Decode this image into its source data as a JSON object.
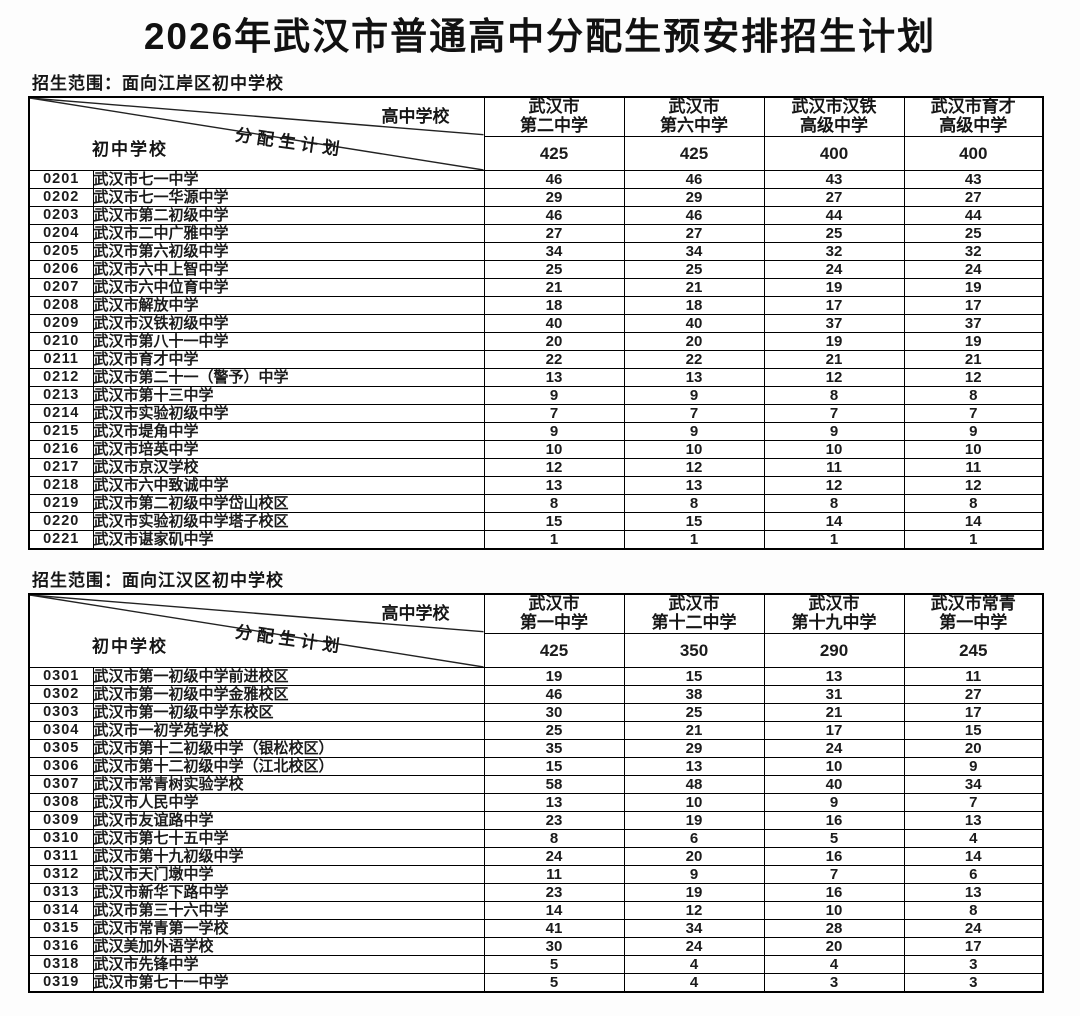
{
  "page": {
    "title": "2026年武汉市普通高中分配生预安排招生计划"
  },
  "tables": [
    {
      "scope_label": "招生范围：面向江岸区初中学校",
      "corner": {
        "high_school": "高中学校",
        "plan": "分配生计划",
        "middle_school": "初中学校"
      },
      "high_schools": [
        {
          "line1": "武汉市",
          "line2": "第二中学",
          "total": "425"
        },
        {
          "line1": "武汉市",
          "line2": "第六中学",
          "total": "425"
        },
        {
          "line1": "武汉市汉铁",
          "line2": "高级中学",
          "total": "400"
        },
        {
          "line1": "武汉市育才",
          "line2": "高级中学",
          "total": "400"
        }
      ],
      "rows": [
        {
          "code": "0201",
          "school": "武汉市七一中学",
          "values": [
            "46",
            "46",
            "43",
            "43"
          ]
        },
        {
          "code": "0202",
          "school": "武汉市七一华源中学",
          "values": [
            "29",
            "29",
            "27",
            "27"
          ]
        },
        {
          "code": "0203",
          "school": "武汉市第二初级中学",
          "values": [
            "46",
            "46",
            "44",
            "44"
          ]
        },
        {
          "code": "0204",
          "school": "武汉市二中广雅中学",
          "values": [
            "27",
            "27",
            "25",
            "25"
          ]
        },
        {
          "code": "0205",
          "school": "武汉市第六初级中学",
          "values": [
            "34",
            "34",
            "32",
            "32"
          ]
        },
        {
          "code": "0206",
          "school": "武汉市六中上智中学",
          "values": [
            "25",
            "25",
            "24",
            "24"
          ]
        },
        {
          "code": "0207",
          "school": "武汉市六中位育中学",
          "values": [
            "21",
            "21",
            "19",
            "19"
          ]
        },
        {
          "code": "0208",
          "school": "武汉市解放中学",
          "values": [
            "18",
            "18",
            "17",
            "17"
          ]
        },
        {
          "code": "0209",
          "school": "武汉市汉铁初级中学",
          "values": [
            "40",
            "40",
            "37",
            "37"
          ]
        },
        {
          "code": "0210",
          "school": "武汉市第八十一中学",
          "values": [
            "20",
            "20",
            "19",
            "19"
          ]
        },
        {
          "code": "0211",
          "school": "武汉市育才中学",
          "values": [
            "22",
            "22",
            "21",
            "21"
          ]
        },
        {
          "code": "0212",
          "school": "武汉市第二十一（警予）中学",
          "values": [
            "13",
            "13",
            "12",
            "12"
          ]
        },
        {
          "code": "0213",
          "school": "武汉市第十三中学",
          "values": [
            "9",
            "9",
            "8",
            "8"
          ]
        },
        {
          "code": "0214",
          "school": "武汉市实验初级中学",
          "values": [
            "7",
            "7",
            "7",
            "7"
          ]
        },
        {
          "code": "0215",
          "school": "武汉市堤角中学",
          "values": [
            "9",
            "9",
            "9",
            "9"
          ]
        },
        {
          "code": "0216",
          "school": "武汉市培英中学",
          "values": [
            "10",
            "10",
            "10",
            "10"
          ]
        },
        {
          "code": "0217",
          "school": "武汉市京汉学校",
          "values": [
            "12",
            "12",
            "11",
            "11"
          ]
        },
        {
          "code": "0218",
          "school": "武汉市六中致诚中学",
          "values": [
            "13",
            "13",
            "12",
            "12"
          ]
        },
        {
          "code": "0219",
          "school": "武汉市第二初级中学岱山校区",
          "values": [
            "8",
            "8",
            "8",
            "8"
          ]
        },
        {
          "code": "0220",
          "school": "武汉市实验初级中学塔子校区",
          "values": [
            "15",
            "15",
            "14",
            "14"
          ]
        },
        {
          "code": "0221",
          "school": "武汉市谌家矶中学",
          "values": [
            "1",
            "1",
            "1",
            "1"
          ]
        }
      ]
    },
    {
      "scope_label": "招生范围：面向江汉区初中学校",
      "corner": {
        "high_school": "高中学校",
        "plan": "分配生计划",
        "middle_school": "初中学校"
      },
      "high_schools": [
        {
          "line1": "武汉市",
          "line2": "第一中学",
          "total": "425"
        },
        {
          "line1": "武汉市",
          "line2": "第十二中学",
          "total": "350"
        },
        {
          "line1": "武汉市",
          "line2": "第十九中学",
          "total": "290"
        },
        {
          "line1": "武汉市常青",
          "line2": "第一中学",
          "total": "245"
        }
      ],
      "rows": [
        {
          "code": "0301",
          "school": "武汉市第一初级中学前进校区",
          "values": [
            "19",
            "15",
            "13",
            "11"
          ]
        },
        {
          "code": "0302",
          "school": "武汉市第一初级中学金雅校区",
          "values": [
            "46",
            "38",
            "31",
            "27"
          ]
        },
        {
          "code": "0303",
          "school": "武汉市第一初级中学东校区",
          "values": [
            "30",
            "25",
            "21",
            "17"
          ]
        },
        {
          "code": "0304",
          "school": "武汉市一初学苑学校",
          "values": [
            "25",
            "21",
            "17",
            "15"
          ]
        },
        {
          "code": "0305",
          "school": "武汉市第十二初级中学（银松校区）",
          "values": [
            "35",
            "29",
            "24",
            "20"
          ]
        },
        {
          "code": "0306",
          "school": "武汉市第十二初级中学（江北校区）",
          "values": [
            "15",
            "13",
            "10",
            "9"
          ]
        },
        {
          "code": "0307",
          "school": "武汉市常青树实验学校",
          "values": [
            "58",
            "48",
            "40",
            "34"
          ]
        },
        {
          "code": "0308",
          "school": "武汉市人民中学",
          "values": [
            "13",
            "10",
            "9",
            "7"
          ]
        },
        {
          "code": "0309",
          "school": "武汉市友谊路中学",
          "values": [
            "23",
            "19",
            "16",
            "13"
          ]
        },
        {
          "code": "0310",
          "school": "武汉市第七十五中学",
          "values": [
            "8",
            "6",
            "5",
            "4"
          ]
        },
        {
          "code": "0311",
          "school": "武汉市第十九初级中学",
          "values": [
            "24",
            "20",
            "16",
            "14"
          ]
        },
        {
          "code": "0312",
          "school": "武汉市天门墩中学",
          "values": [
            "11",
            "9",
            "7",
            "6"
          ]
        },
        {
          "code": "0313",
          "school": "武汉市新华下路中学",
          "values": [
            "23",
            "19",
            "16",
            "13"
          ]
        },
        {
          "code": "0314",
          "school": "武汉市第三十六中学",
          "values": [
            "14",
            "12",
            "10",
            "8"
          ]
        },
        {
          "code": "0315",
          "school": "武汉市常青第一学校",
          "values": [
            "41",
            "34",
            "28",
            "24"
          ]
        },
        {
          "code": "0316",
          "school": "武汉美加外语学校",
          "values": [
            "30",
            "24",
            "20",
            "17"
          ]
        },
        {
          "code": "0318",
          "school": "武汉市先锋中学",
          "values": [
            "5",
            "4",
            "4",
            "3"
          ]
        },
        {
          "code": "0319",
          "school": "武汉市第七十一中学",
          "values": [
            "5",
            "4",
            "3",
            "3"
          ]
        }
      ]
    }
  ]
}
